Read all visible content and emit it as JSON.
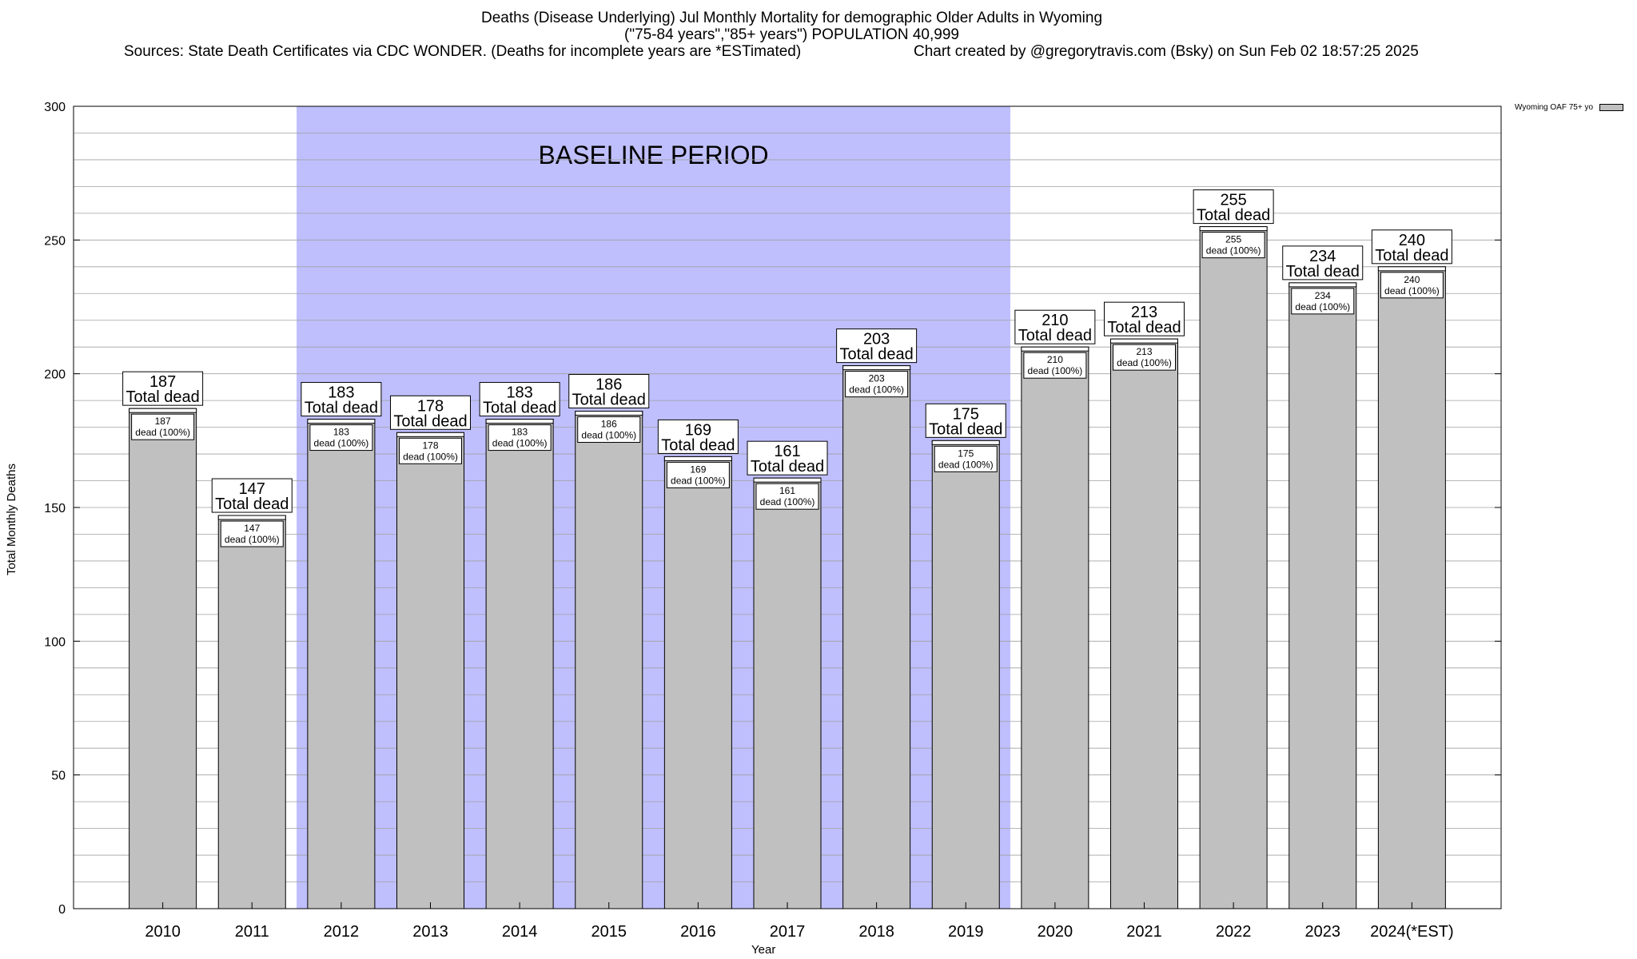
{
  "title_lines": [
    "Deaths (Disease Underlying) Jul Monthly Mortality for demographic Older Adults in Wyoming",
    "(\"75-84 years\",\"85+ years\") POPULATION 40,999"
  ],
  "sources_text": "Sources: State Death Certificates via CDC WONDER. (Deaths for incomplete years are *ESTimated)",
  "credit_text": "Chart created by @gregorytravis.com (Bsky) on Sun Feb 02 18:57:25 2025",
  "legend": {
    "label": "Wyoming OAF 75+ yo",
    "color": "#c0c0c0"
  },
  "baseline_label": "BASELINE PERIOD",
  "colors": {
    "bar": "#c0c0c0",
    "baseline_band": "#bfbffe"
  },
  "chart_data": {
    "type": "bar",
    "categories": [
      "2010",
      "2011",
      "2012",
      "2013",
      "2014",
      "2015",
      "2016",
      "2017",
      "2018",
      "2019",
      "2020",
      "2021",
      "2022",
      "2023",
      "2024(*EST)"
    ],
    "series": [
      {
        "name": "Wyoming OAF 75+ yo",
        "values": [
          187,
          147,
          183,
          178,
          183,
          186,
          169,
          161,
          203,
          175,
          210,
          213,
          255,
          234,
          240
        ]
      }
    ],
    "top_label_suffix": "Total dead",
    "inner_label_suffix": "dead (100%)",
    "baseline_range": [
      "2012",
      "2019"
    ],
    "xlabel": "Year",
    "ylabel": "Total Monthly Deaths",
    "ylim": [
      0,
      300
    ],
    "yticks": [
      0,
      50,
      100,
      150,
      200,
      250,
      300
    ],
    "grid": true,
    "legend_position": "top-right"
  }
}
